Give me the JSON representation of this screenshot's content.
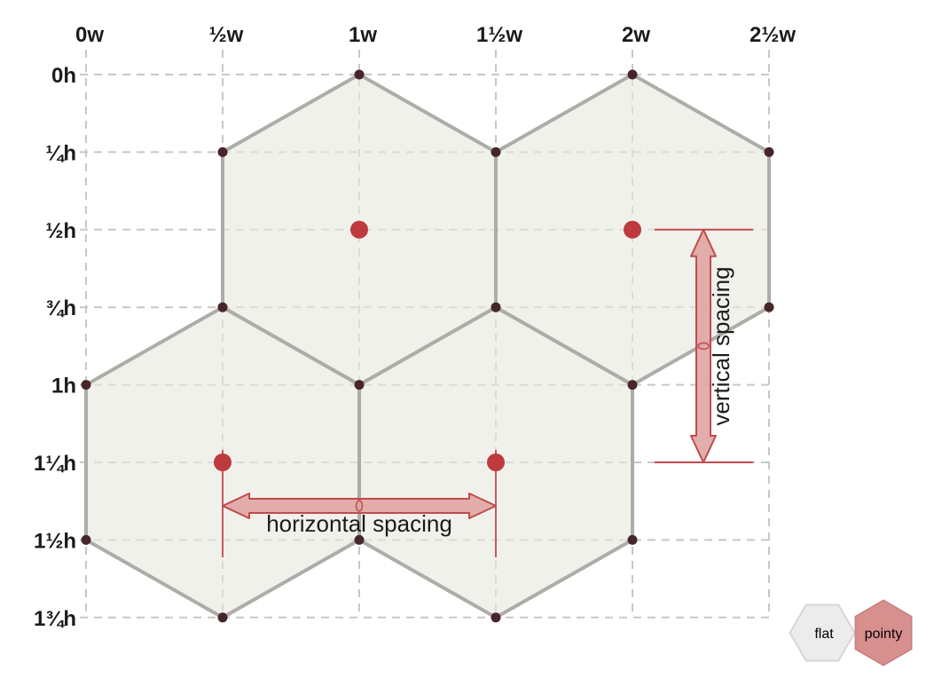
{
  "diagram": {
    "name": "hexagon grid spacing",
    "orientation": "pointy",
    "top_axis_ticks": [
      "0w",
      "½w",
      "1w",
      "1½w",
      "2w",
      "2½w"
    ],
    "left_axis_ticks": [
      "0h",
      "¼h",
      "½h",
      "¾h",
      "1h",
      "1¼h",
      "1½h",
      "1¾h"
    ],
    "hex_centers_wh": [
      [
        1,
        0.5
      ],
      [
        2,
        0.5
      ],
      [
        0.5,
        1.25
      ],
      [
        1.5,
        1.25
      ]
    ],
    "annotations": {
      "horizontal_label": "horizontal spacing",
      "vertical_label": "vertical spacing",
      "horizontal_span_w": [
        0.5,
        1.5
      ],
      "vertical_span_h": [
        0.5,
        1.25
      ]
    },
    "toggle": {
      "flat_label": "flat",
      "pointy_label": "pointy",
      "selected": "pointy"
    },
    "colors": {
      "background": "#ffffff",
      "grid_line": "#c7c7c5",
      "hex_fill": "#e9e9df",
      "hex_stroke": "#aeaca7",
      "vertex_dot": "#47262b",
      "center_dot": "#bf3a3c",
      "arrow_stroke": "#c04b4d",
      "arrow_fill": "#e0a4a3",
      "label_text": "#1b1b1b",
      "flat_button_fill": "#ececec",
      "flat_button_stroke": "#d6d6d6",
      "pointy_button_fill": "#d8908f",
      "pointy_button_stroke": "#ca8384"
    }
  }
}
